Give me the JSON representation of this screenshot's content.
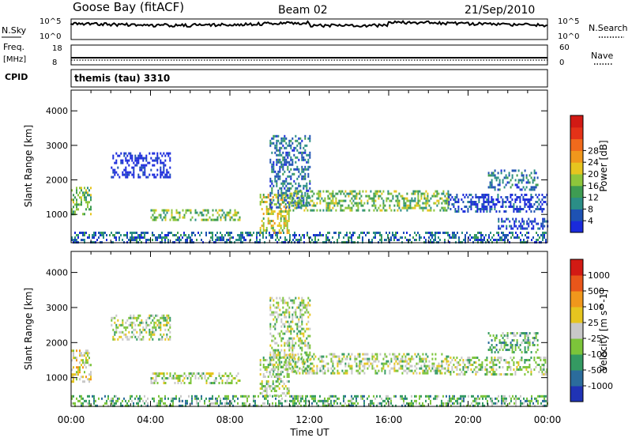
{
  "header": {
    "station": "Goose Bay (fitACF)",
    "beam": "Beam 02",
    "date": "21/Sep/2010"
  },
  "strip_labels": {
    "nsky": "N.Sky",
    "freq": "Freq.",
    "mhz": "[MHz]",
    "cpid": "CPID",
    "nsearch": "N.Search",
    "nave": "Nave",
    "pow_hi": "10^5",
    "pow_lo": "10^0",
    "freq_hi": "18",
    "freq_lo": "8",
    "nave_hi": "60",
    "nave_lo": "0",
    "cpid_text": "themis (tau) 3310"
  },
  "chart_data": {
    "type": "heatmap",
    "x": {
      "label": "Time UT",
      "range": [
        0,
        24
      ],
      "ticks": [
        0,
        4,
        8,
        12,
        16,
        20,
        24
      ],
      "tick_labels": [
        "00:00",
        "04:00",
        "08:00",
        "12:00",
        "16:00",
        "20:00",
        "00:00"
      ]
    },
    "y": {
      "label": "Slant Range [km]",
      "range": [
        180,
        4600
      ],
      "ticks": [
        1000,
        2000,
        3000,
        4000
      ],
      "tick_labels": [
        "1000",
        "2000",
        "3000",
        "4000"
      ]
    },
    "power_panel": {
      "colorbar_label": "Power [dB]",
      "colorbar_ticks": [
        "4",
        "8",
        "12",
        "16",
        "20",
        "24",
        "28"
      ],
      "colors": [
        "#1a2adb",
        "#1e52b3",
        "#2b8e86",
        "#3e9c52",
        "#8ec63b",
        "#e6c51f",
        "#f0971c",
        "#f06a1c",
        "#e43218",
        "#d21a14"
      ],
      "regions": [
        {
          "t": [
            0.0,
            1.0
          ],
          "r": [
            1000,
            1800
          ],
          "level": 4
        },
        {
          "t": [
            2.0,
            5.0
          ],
          "r": [
            2100,
            2800
          ],
          "level": 0
        },
        {
          "t": [
            4.0,
            8.5
          ],
          "r": [
            850,
            1150
          ],
          "level": 4
        },
        {
          "t": [
            0.0,
            24.0
          ],
          "r": [
            200,
            500
          ],
          "level": 2
        },
        {
          "t": [
            9.5,
            11.0
          ],
          "r": [
            500,
            1600
          ],
          "level": 5
        },
        {
          "t": [
            10.0,
            12.0
          ],
          "r": [
            1200,
            3300
          ],
          "level": 2
        },
        {
          "t": [
            11.0,
            19.0
          ],
          "r": [
            1100,
            1700
          ],
          "level": 4
        },
        {
          "t": [
            19.0,
            24.0
          ],
          "r": [
            1100,
            1600
          ],
          "level": 1
        },
        {
          "t": [
            21.5,
            24.0
          ],
          "r": [
            600,
            900
          ],
          "level": 1
        },
        {
          "t": [
            21.0,
            23.5
          ],
          "r": [
            1700,
            2300
          ],
          "level": 2
        }
      ]
    },
    "velocity_panel": {
      "colorbar_label": "Velocity [m s^-1]",
      "colorbar_ticks": [
        "1000",
        "500",
        "100",
        "25",
        "-25",
        "-100",
        "-500",
        "-1000"
      ],
      "colors": [
        "#2033b5",
        "#2b6c9c",
        "#349a62",
        "#7cc43a",
        "#c8c8c8",
        "#e6c51f",
        "#f0971c",
        "#e8561a",
        "#d21a14"
      ],
      "regions": [
        {
          "t": [
            0.0,
            1.0
          ],
          "r": [
            900,
            1800
          ],
          "level": 5
        },
        {
          "t": [
            2.0,
            5.0
          ],
          "r": [
            2100,
            2800
          ],
          "level": 4
        },
        {
          "t": [
            4.0,
            8.5
          ],
          "r": [
            850,
            1150
          ],
          "level": 4
        },
        {
          "t": [
            0.0,
            24.0
          ],
          "r": [
            200,
            500
          ],
          "level": 3
        },
        {
          "t": [
            9.5,
            11.0
          ],
          "r": [
            500,
            1600
          ],
          "level": 4
        },
        {
          "t": [
            10.0,
            12.0
          ],
          "r": [
            1200,
            3300
          ],
          "level": 4
        },
        {
          "t": [
            11.0,
            19.0
          ],
          "r": [
            1100,
            1700
          ],
          "level": 4
        },
        {
          "t": [
            19.0,
            24.0
          ],
          "r": [
            1100,
            1600
          ],
          "level": 4
        },
        {
          "t": [
            21.0,
            23.5
          ],
          "r": [
            1700,
            2300
          ],
          "level": 3
        }
      ]
    }
  }
}
